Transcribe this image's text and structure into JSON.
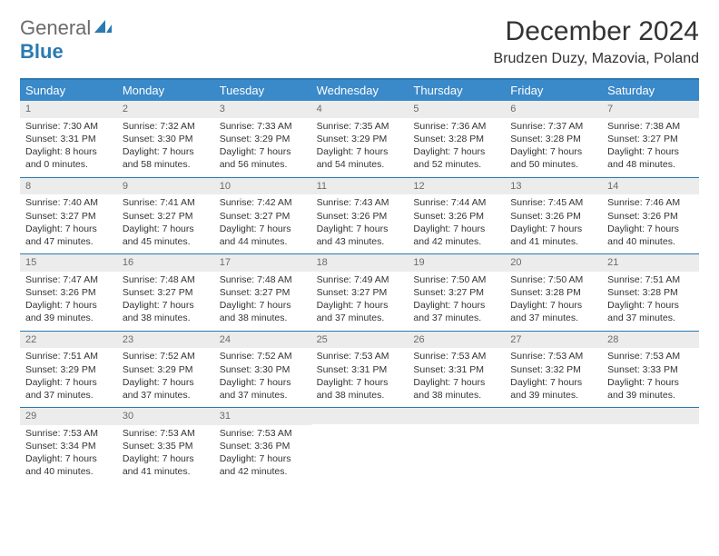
{
  "logo": {
    "general": "General",
    "blue": "Blue"
  },
  "title": "December 2024",
  "location": "Brudzen Duzy, Mazovia, Poland",
  "colors": {
    "header_bg": "#3a89c9",
    "border": "#2a7ab0",
    "daynum_bg": "#ececec",
    "text": "#333333",
    "muted": "#6b6b6b",
    "white": "#ffffff"
  },
  "weekdays": [
    "Sunday",
    "Monday",
    "Tuesday",
    "Wednesday",
    "Thursday",
    "Friday",
    "Saturday"
  ],
  "weeks": [
    [
      {
        "n": "1",
        "sr": "7:30 AM",
        "ss": "3:31 PM",
        "d1": "8 hours",
        "d2": "0 minutes."
      },
      {
        "n": "2",
        "sr": "7:32 AM",
        "ss": "3:30 PM",
        "d1": "7 hours",
        "d2": "58 minutes."
      },
      {
        "n": "3",
        "sr": "7:33 AM",
        "ss": "3:29 PM",
        "d1": "7 hours",
        "d2": "56 minutes."
      },
      {
        "n": "4",
        "sr": "7:35 AM",
        "ss": "3:29 PM",
        "d1": "7 hours",
        "d2": "54 minutes."
      },
      {
        "n": "5",
        "sr": "7:36 AM",
        "ss": "3:28 PM",
        "d1": "7 hours",
        "d2": "52 minutes."
      },
      {
        "n": "6",
        "sr": "7:37 AM",
        "ss": "3:28 PM",
        "d1": "7 hours",
        "d2": "50 minutes."
      },
      {
        "n": "7",
        "sr": "7:38 AM",
        "ss": "3:27 PM",
        "d1": "7 hours",
        "d2": "48 minutes."
      }
    ],
    [
      {
        "n": "8",
        "sr": "7:40 AM",
        "ss": "3:27 PM",
        "d1": "7 hours",
        "d2": "47 minutes."
      },
      {
        "n": "9",
        "sr": "7:41 AM",
        "ss": "3:27 PM",
        "d1": "7 hours",
        "d2": "45 minutes."
      },
      {
        "n": "10",
        "sr": "7:42 AM",
        "ss": "3:27 PM",
        "d1": "7 hours",
        "d2": "44 minutes."
      },
      {
        "n": "11",
        "sr": "7:43 AM",
        "ss": "3:26 PM",
        "d1": "7 hours",
        "d2": "43 minutes."
      },
      {
        "n": "12",
        "sr": "7:44 AM",
        "ss": "3:26 PM",
        "d1": "7 hours",
        "d2": "42 minutes."
      },
      {
        "n": "13",
        "sr": "7:45 AM",
        "ss": "3:26 PM",
        "d1": "7 hours",
        "d2": "41 minutes."
      },
      {
        "n": "14",
        "sr": "7:46 AM",
        "ss": "3:26 PM",
        "d1": "7 hours",
        "d2": "40 minutes."
      }
    ],
    [
      {
        "n": "15",
        "sr": "7:47 AM",
        "ss": "3:26 PM",
        "d1": "7 hours",
        "d2": "39 minutes."
      },
      {
        "n": "16",
        "sr": "7:48 AM",
        "ss": "3:27 PM",
        "d1": "7 hours",
        "d2": "38 minutes."
      },
      {
        "n": "17",
        "sr": "7:48 AM",
        "ss": "3:27 PM",
        "d1": "7 hours",
        "d2": "38 minutes."
      },
      {
        "n": "18",
        "sr": "7:49 AM",
        "ss": "3:27 PM",
        "d1": "7 hours",
        "d2": "37 minutes."
      },
      {
        "n": "19",
        "sr": "7:50 AM",
        "ss": "3:27 PM",
        "d1": "7 hours",
        "d2": "37 minutes."
      },
      {
        "n": "20",
        "sr": "7:50 AM",
        "ss": "3:28 PM",
        "d1": "7 hours",
        "d2": "37 minutes."
      },
      {
        "n": "21",
        "sr": "7:51 AM",
        "ss": "3:28 PM",
        "d1": "7 hours",
        "d2": "37 minutes."
      }
    ],
    [
      {
        "n": "22",
        "sr": "7:51 AM",
        "ss": "3:29 PM",
        "d1": "7 hours",
        "d2": "37 minutes."
      },
      {
        "n": "23",
        "sr": "7:52 AM",
        "ss": "3:29 PM",
        "d1": "7 hours",
        "d2": "37 minutes."
      },
      {
        "n": "24",
        "sr": "7:52 AM",
        "ss": "3:30 PM",
        "d1": "7 hours",
        "d2": "37 minutes."
      },
      {
        "n": "25",
        "sr": "7:53 AM",
        "ss": "3:31 PM",
        "d1": "7 hours",
        "d2": "38 minutes."
      },
      {
        "n": "26",
        "sr": "7:53 AM",
        "ss": "3:31 PM",
        "d1": "7 hours",
        "d2": "38 minutes."
      },
      {
        "n": "27",
        "sr": "7:53 AM",
        "ss": "3:32 PM",
        "d1": "7 hours",
        "d2": "39 minutes."
      },
      {
        "n": "28",
        "sr": "7:53 AM",
        "ss": "3:33 PM",
        "d1": "7 hours",
        "d2": "39 minutes."
      }
    ],
    [
      {
        "n": "29",
        "sr": "7:53 AM",
        "ss": "3:34 PM",
        "d1": "7 hours",
        "d2": "40 minutes."
      },
      {
        "n": "30",
        "sr": "7:53 AM",
        "ss": "3:35 PM",
        "d1": "7 hours",
        "d2": "41 minutes."
      },
      {
        "n": "31",
        "sr": "7:53 AM",
        "ss": "3:36 PM",
        "d1": "7 hours",
        "d2": "42 minutes."
      },
      null,
      null,
      null,
      null
    ]
  ],
  "labels": {
    "sunrise_prefix": "Sunrise: ",
    "sunset_prefix": "Sunset: ",
    "daylight_prefix": "Daylight: ",
    "and_word": "and "
  }
}
